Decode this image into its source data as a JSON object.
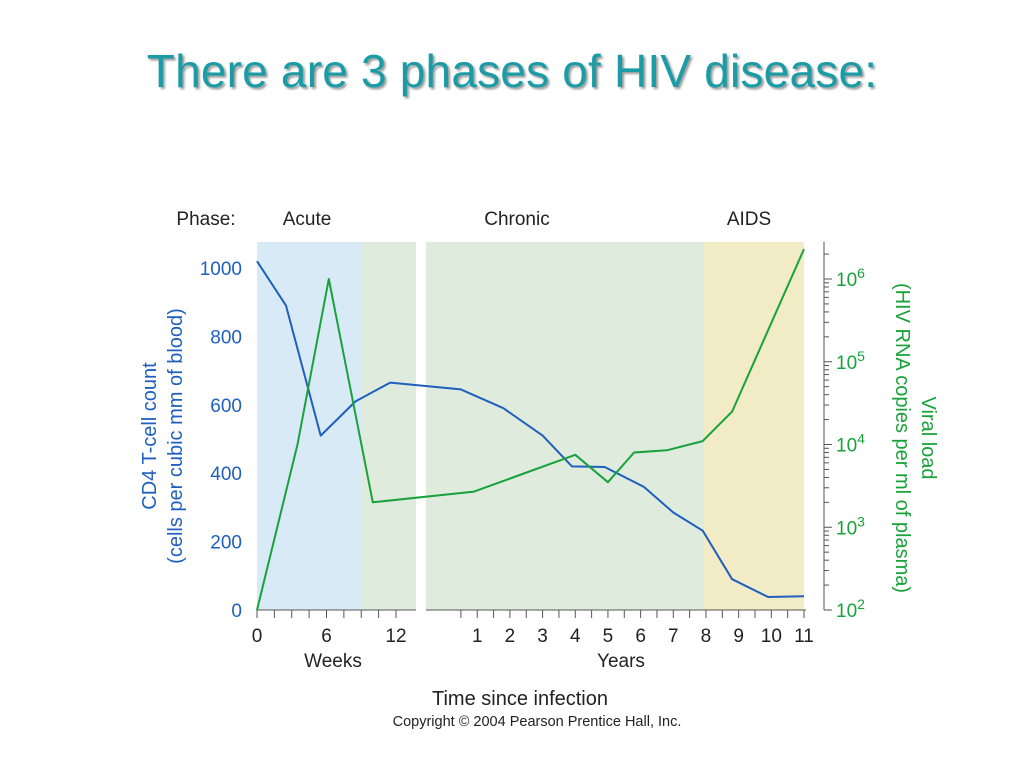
{
  "slide": {
    "title": "There are 3 phases of HIV disease:",
    "copyright": "Copyright © 2004 Pearson Prentice Hall, Inc."
  },
  "colors": {
    "title": "#1a9ca6",
    "cd4": "#1f5fc0",
    "viral": "#18a23a",
    "acute_band": "#d8eaf6",
    "chronic_band": "#dfebdd",
    "aids_band": "#f2ecc6"
  },
  "chart_data": {
    "type": "line",
    "phase_label": "Phase:",
    "phases": [
      {
        "name": "Acute",
        "from": "0 weeks",
        "to": "9 weeks"
      },
      {
        "name": "Chronic",
        "from": "9 weeks",
        "to": "8 years"
      },
      {
        "name": "AIDS",
        "from": "8 years",
        "to": "11 years"
      }
    ],
    "xlabel": "Time since infection",
    "x_segments": [
      {
        "unit": "Weeks",
        "ticks": [
          "0",
          "6",
          "12"
        ],
        "range": [
          0,
          12
        ]
      },
      {
        "unit": "Years",
        "ticks": [
          "1",
          "2",
          "3",
          "4",
          "5",
          "6",
          "7",
          "8",
          "9",
          "10",
          "11"
        ],
        "range": [
          0.35,
          11
        ]
      }
    ],
    "y_left": {
      "label_line1": "CD4 T-cell count",
      "label_line2": "(cells per cubic mm of blood)",
      "ticks": [
        "0",
        "200",
        "400",
        "600",
        "800",
        "1000"
      ],
      "range": [
        0,
        1000
      ]
    },
    "y_right": {
      "label_line1": "Viral load",
      "label_line2": "(HIV RNA copies per ml of plasma)",
      "ticks": [
        {
          "base": "10",
          "exp": "2"
        },
        {
          "base": "10",
          "exp": "3"
        },
        {
          "base": "10",
          "exp": "4"
        },
        {
          "base": "10",
          "exp": "5"
        },
        {
          "base": "10",
          "exp": "6"
        }
      ],
      "scale": "log",
      "range": [
        100,
        1000000
      ]
    },
    "series": [
      {
        "name": "CD4 T-cell count",
        "axis": "left",
        "points": [
          {
            "seg": 0,
            "x": 0,
            "y": 1020
          },
          {
            "seg": 0,
            "x": 2.5,
            "y": 890
          },
          {
            "seg": 0,
            "x": 5.5,
            "y": 510
          },
          {
            "seg": 0,
            "x": 8.5,
            "y": 610
          },
          {
            "seg": 0,
            "x": 11.5,
            "y": 665
          },
          {
            "seg": 1,
            "x": 0.5,
            "y": 645
          },
          {
            "seg": 1,
            "x": 1.8,
            "y": 590
          },
          {
            "seg": 1,
            "x": 3.0,
            "y": 510
          },
          {
            "seg": 1,
            "x": 3.9,
            "y": 420
          },
          {
            "seg": 1,
            "x": 4.9,
            "y": 418
          },
          {
            "seg": 1,
            "x": 6.1,
            "y": 360
          },
          {
            "seg": 1,
            "x": 7.0,
            "y": 285
          },
          {
            "seg": 1,
            "x": 7.9,
            "y": 232
          },
          {
            "seg": 1,
            "x": 8.8,
            "y": 90
          },
          {
            "seg": 1,
            "x": 9.9,
            "y": 38
          },
          {
            "seg": 1,
            "x": 11.0,
            "y": 40
          }
        ]
      },
      {
        "name": "Viral load",
        "axis": "right",
        "points": [
          {
            "seg": 0,
            "x": 0,
            "y": 100
          },
          {
            "seg": 0,
            "x": 3.5,
            "y": 10000
          },
          {
            "seg": 0,
            "x": 6.2,
            "y": 1000000
          },
          {
            "seg": 0,
            "x": 10.0,
            "y": 2000
          },
          {
            "seg": 1,
            "x": 0.9,
            "y": 2700
          },
          {
            "seg": 1,
            "x": 4.0,
            "y": 7500
          },
          {
            "seg": 1,
            "x": 5.0,
            "y": 3500
          },
          {
            "seg": 1,
            "x": 5.8,
            "y": 8000
          },
          {
            "seg": 1,
            "x": 6.8,
            "y": 8500
          },
          {
            "seg": 1,
            "x": 7.9,
            "y": 11000
          },
          {
            "seg": 1,
            "x": 8.8,
            "y": 25000
          },
          {
            "seg": 1,
            "x": 11.0,
            "y": 2300000
          }
        ]
      }
    ]
  }
}
